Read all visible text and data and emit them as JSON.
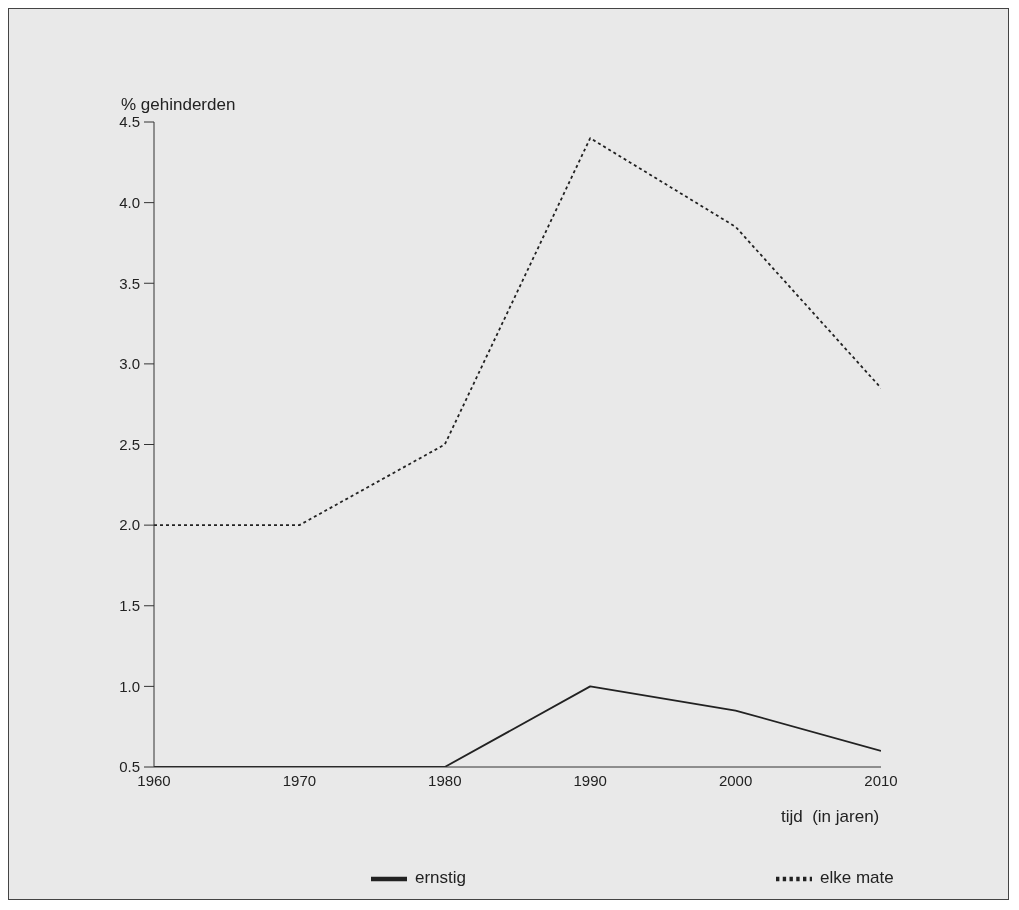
{
  "chart_data": {
    "type": "line",
    "ylabel": "% gehinderden",
    "xlabel": "tijd  (in jaren)",
    "x": [
      1960,
      1970,
      1980,
      1990,
      2000,
      2010
    ],
    "series": [
      {
        "name": "ernstig",
        "color": "#222222",
        "line_style": "solid",
        "values": [
          0.5,
          0.5,
          0.5,
          1.0,
          0.85,
          0.6
        ]
      },
      {
        "name": "elke mate",
        "color": "#222222",
        "line_style": "dotted",
        "values": [
          2.0,
          2.0,
          2.5,
          4.4,
          3.85,
          2.85
        ]
      }
    ],
    "xlim": [
      1960,
      2010
    ],
    "xticks": [
      1960,
      1970,
      1980,
      1990,
      2000,
      2010
    ],
    "ylim": [
      0.5,
      4.5
    ],
    "yticks": [
      0.5,
      {
        "value": 1,
        "label": "1.0"
      },
      1.5,
      {
        "value": 2,
        "label": "2.0"
      },
      2.5,
      {
        "value": 3,
        "label": "3.0"
      },
      3.5,
      {
        "value": 4,
        "label": "4.0"
      },
      4.5
    ],
    "grid": false,
    "legend": "bottom",
    "marker": "none"
  }
}
